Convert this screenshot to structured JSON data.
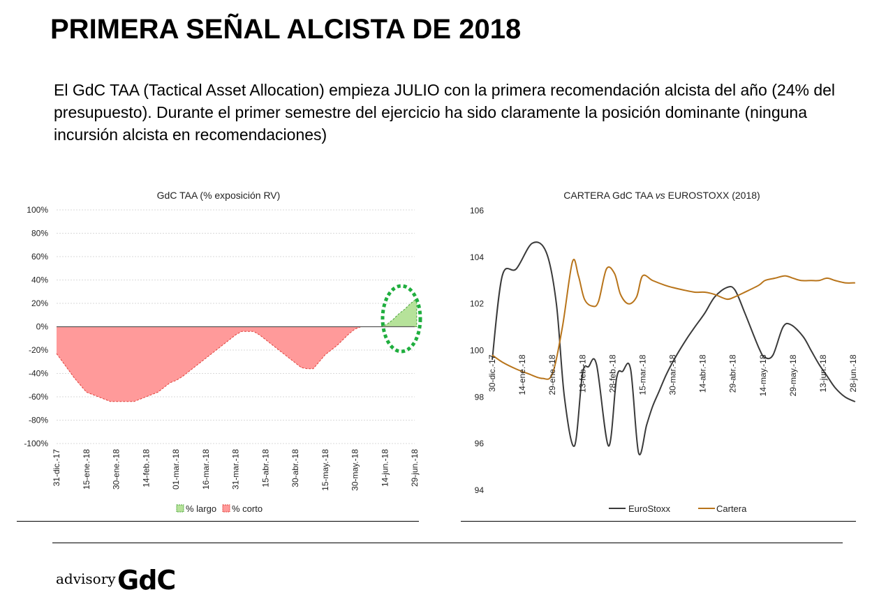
{
  "page": {
    "title": "PRIMERA SEÑAL ALCISTA DE 2018",
    "subtitle": "El GdC TAA (Tactical Asset Allocation) empieza JULIO con la primera recomendación alcista del año (24% del presupuesto). Durante el primer semestre del ejercicio ha sido claramente la posición dominante (ninguna incursión alcista en recomendaciones)",
    "logo": {
      "advisory": "advisory",
      "brand": "GdC"
    }
  },
  "colors": {
    "short_fill": "#ff9a9a",
    "short_line": "#e0403a",
    "long_fill": "#b6e29a",
    "long_line": "#4aa43a",
    "highlight": "#1fae3e",
    "eurostoxx": "#3a3a3a",
    "cartera": "#b8741a",
    "grid": "#d9d9d9"
  },
  "chart_data": [
    {
      "type": "area",
      "title": "GdC TAA (% exposición RV)",
      "ylim": [
        -100,
        100
      ],
      "yticks": [
        "-100%",
        "-80%",
        "-60%",
        "-40%",
        "-20%",
        "0%",
        "20%",
        "40%",
        "60%",
        "80%",
        "100%"
      ],
      "ytick_values": [
        -100,
        -80,
        -60,
        -40,
        -20,
        0,
        20,
        40,
        60,
        80,
        100
      ],
      "xlim": [
        0,
        180
      ],
      "x_tick_labels": [
        "31-dic.-17",
        "15-ene.-18",
        "30-ene.-18",
        "14-feb.-18",
        "01-mar.-18",
        "16-mar.-18",
        "31-mar.-18",
        "15-abr.-18",
        "30-abr.-18",
        "15-may.-18",
        "30-may.-18",
        "14-jun.-18",
        "29-jun.-18"
      ],
      "x_tick_values": [
        0,
        15,
        30,
        45,
        60,
        75,
        90,
        105,
        120,
        135,
        150,
        165,
        180
      ],
      "series": [
        {
          "name": "% largo",
          "x": [
            163,
            166,
            169,
            172,
            175,
            178,
            181
          ],
          "values": [
            0,
            2,
            6,
            11,
            15,
            20,
            24
          ]
        },
        {
          "name": "% corto",
          "x": [
            0,
            3,
            6,
            9,
            12,
            15,
            18,
            21,
            24,
            27,
            30,
            33,
            36,
            39,
            42,
            45,
            48,
            51,
            54,
            57,
            60,
            63,
            66,
            69,
            72,
            75,
            78,
            81,
            84,
            87,
            90,
            93,
            96,
            99,
            102,
            105,
            108,
            111,
            114,
            117,
            120,
            123,
            126,
            129,
            132,
            135,
            138,
            141,
            144,
            147,
            150,
            153,
            156,
            159,
            162,
            165,
            168,
            171,
            174,
            177,
            181
          ],
          "values": [
            -23,
            -30,
            -37,
            -44,
            -50,
            -56,
            -58,
            -60,
            -62,
            -64,
            -64,
            -64,
            -64,
            -64,
            -62,
            -60,
            -58,
            -56,
            -52,
            -48,
            -46,
            -43,
            -39,
            -35,
            -31,
            -27,
            -23,
            -19,
            -15,
            -11,
            -7,
            -4,
            -4,
            -4,
            -7,
            -11,
            -15,
            -19,
            -23,
            -27,
            -31,
            -35,
            -36,
            -36,
            -30,
            -24,
            -20,
            -16,
            -11,
            -6,
            -2,
            0,
            0,
            0,
            0,
            0,
            0,
            0,
            0,
            0,
            0
          ]
        }
      ],
      "highlight": "long-position",
      "legend": [
        "% largo",
        "% corto"
      ],
      "legend_position": "bottom"
    },
    {
      "type": "line",
      "title_prefix": "CARTERA GdC TAA ",
      "title_vs": "vs",
      "title_suffix": " EUROSTOXX (2018)",
      "ylim": [
        94,
        106
      ],
      "yticks": [
        "94",
        "96",
        "98",
        "100",
        "102",
        "104",
        "106"
      ],
      "ytick_values": [
        94,
        96,
        98,
        100,
        102,
        104,
        106
      ],
      "xlim": [
        0,
        180
      ],
      "x_tick_labels": [
        "30-dic.-17",
        "14-ene.-18",
        "29-ene.-18",
        "13-feb.-18",
        "28-feb.-18",
        "15-mar.-18",
        "30-mar.-18",
        "14-abr.-18",
        "29-abr.-18",
        "14-may.-18",
        "29-may.-18",
        "13-jun.-18",
        "28-jun.-18"
      ],
      "x_tick_values": [
        0,
        15,
        30,
        45,
        60,
        75,
        90,
        105,
        120,
        135,
        150,
        165,
        180
      ],
      "series": [
        {
          "name": "EuroStoxx",
          "x": [
            0,
            5,
            12,
            20,
            27,
            32,
            36,
            41,
            45,
            48,
            52,
            58,
            62,
            65,
            69,
            73,
            77,
            80,
            83,
            87,
            92,
            97,
            101,
            106,
            111,
            117,
            121,
            126,
            133,
            136,
            140,
            145,
            149,
            155,
            159,
            163,
            167,
            171,
            176,
            181
          ],
          "values": [
            99.6,
            103.2,
            103.5,
            104.6,
            104.2,
            102.0,
            98.0,
            95.9,
            99.0,
            99.3,
            99.4,
            95.9,
            98.8,
            99.1,
            99.2,
            95.6,
            96.8,
            97.6,
            98.2,
            99.0,
            99.8,
            100.5,
            101.0,
            101.6,
            102.3,
            102.7,
            102.6,
            101.6,
            100.1,
            99.7,
            99.8,
            101.0,
            101.1,
            100.6,
            100.0,
            99.4,
            98.9,
            98.4,
            98.0,
            97.8
          ]
        },
        {
          "name": "Cartera",
          "x": [
            0,
            5,
            12,
            18,
            25,
            30,
            35,
            40,
            43,
            46,
            50,
            53,
            57,
            61,
            64,
            68,
            72,
            75,
            80,
            86,
            90,
            95,
            101,
            106,
            111,
            117,
            121,
            126,
            133,
            136,
            141,
            146,
            150,
            154,
            159,
            163,
            167,
            171,
            176,
            181
          ],
          "values": [
            99.8,
            99.5,
            99.2,
            99.0,
            98.8,
            99.0,
            101.0,
            103.8,
            103.2,
            102.2,
            101.9,
            102.1,
            103.5,
            103.3,
            102.4,
            102.0,
            102.3,
            103.2,
            103.0,
            102.8,
            102.7,
            102.6,
            102.5,
            102.5,
            102.4,
            102.2,
            102.3,
            102.5,
            102.8,
            103.0,
            103.1,
            103.2,
            103.1,
            103.0,
            103.0,
            103.0,
            103.1,
            103.0,
            102.9,
            102.9
          ]
        }
      ],
      "legend": [
        "EuroStoxx",
        "Cartera"
      ],
      "legend_position": "bottom"
    }
  ]
}
